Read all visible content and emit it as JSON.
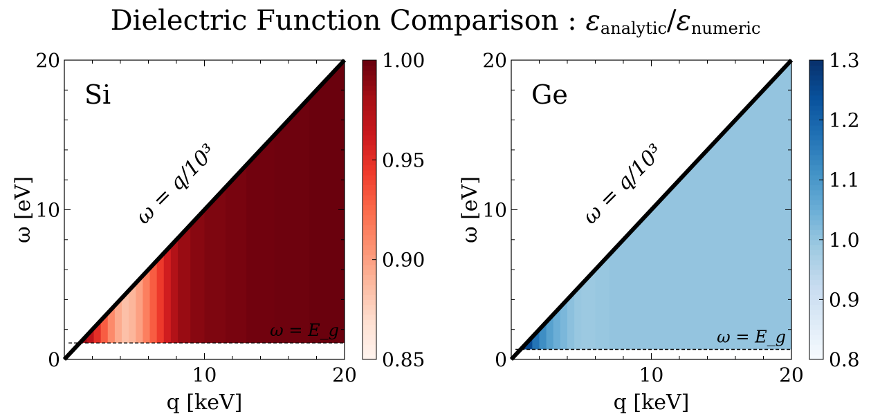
{
  "figure_title": {
    "prefix": "Dielectric Function Comparison : ",
    "eps_symbol": "ε",
    "num_sub": "analytic",
    "slash": "/",
    "den_sub": "numeric"
  },
  "chart_data": [
    {
      "type": "heatmap",
      "panel_label": "Si",
      "xlabel": "q [keV]",
      "ylabel": "ω [eV]",
      "xlim": [
        0,
        20
      ],
      "ylim": [
        0,
        20
      ],
      "x_ticks": [
        "10",
        "20"
      ],
      "y_ticks": [
        "0",
        "10",
        "20"
      ],
      "colormap": "Reds",
      "colorbar_range": [
        0.85,
        1.0
      ],
      "colorbar_ticks": [
        "0.85",
        "0.90",
        "0.95",
        "1.00"
      ],
      "colorbar_tick_values": [
        0.85,
        0.9,
        0.95,
        1.0
      ],
      "gap_energy_eV": 1.1,
      "boundary_line_label": "ω = q/10³",
      "gap_line_label": "ω = E_g",
      "column_edges_keV": [
        1.1,
        1.6,
        2.1,
        2.6,
        3.1,
        3.6,
        4.1,
        4.6,
        5.1,
        5.6,
        6.1,
        6.6,
        7.1,
        7.6,
        8.1,
        9.0,
        10.0,
        11.5,
        13.0,
        15.0,
        17.5,
        20.0
      ],
      "column_values": [
        0.985,
        0.97,
        0.95,
        0.93,
        0.91,
        0.895,
        0.885,
        0.89,
        0.9,
        0.915,
        0.93,
        0.945,
        0.96,
        0.975,
        0.985,
        0.99,
        0.993,
        0.995,
        0.997,
        0.998,
        0.999
      ]
    },
    {
      "type": "heatmap",
      "panel_label": "Ge",
      "xlabel": "q [keV]",
      "ylabel": "ω [eV]",
      "xlim": [
        0,
        20
      ],
      "ylim": [
        0,
        20
      ],
      "x_ticks": [
        "10",
        "20"
      ],
      "y_ticks": [
        "0",
        "10",
        "20"
      ],
      "colormap": "Blues",
      "colorbar_range": [
        0.8,
        1.3
      ],
      "colorbar_ticks": [
        "0.8",
        "0.9",
        "1.0",
        "1.1",
        "1.2",
        "1.3"
      ],
      "colorbar_tick_values": [
        0.8,
        0.9,
        1.0,
        1.1,
        1.2,
        1.3
      ],
      "gap_energy_eV": 0.67,
      "boundary_line_label": "ω = q/10³",
      "gap_line_label": "ω = E_g",
      "column_edges_keV": [
        0.67,
        1.0,
        1.5,
        2.0,
        2.5,
        3.0,
        3.5,
        4.0,
        4.5,
        5.0,
        5.5,
        6.0,
        7.0,
        8.0,
        9.0,
        10.5,
        12.0,
        14.0,
        16.0,
        18.0,
        20.0
      ],
      "column_values": [
        1.3,
        1.25,
        1.17,
        1.12,
        1.08,
        1.05,
        1.03,
        1.01,
        0.995,
        0.99,
        0.99,
        0.995,
        1.0,
        1.0,
        1.0,
        1.0,
        1.0,
        1.0,
        1.0,
        1.0
      ]
    }
  ]
}
